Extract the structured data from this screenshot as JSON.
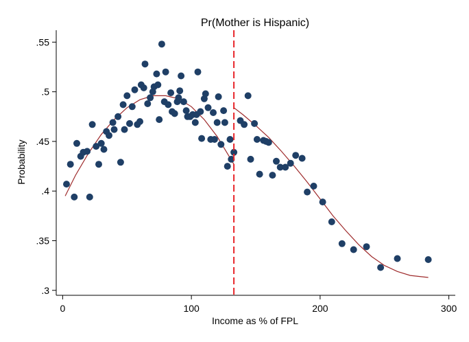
{
  "chart_data": {
    "type": "scatter",
    "title": "Pr(Mother is Hispanic)",
    "xlabel": "Income as % of FPL",
    "ylabel": "Probability",
    "xlim": [
      -5,
      305
    ],
    "ylim": [
      0.295,
      0.562
    ],
    "xticks": [
      0,
      100,
      200,
      300
    ],
    "xtick_labels": [
      "0",
      "100",
      "200",
      "300"
    ],
    "yticks": [
      0.3,
      0.35,
      0.4,
      0.45,
      0.5,
      0.55
    ],
    "ytick_labels": [
      ".3",
      ".35",
      ".4",
      ".45",
      ".5",
      ".55"
    ],
    "grid": false,
    "legend": "none",
    "colors": {
      "points": "#1f3f66",
      "fit": "#9e2a2b",
      "cutoff": "#e8262a",
      "axis": "#000000"
    },
    "cutoff_x": 133,
    "points": [
      {
        "x": 3,
        "y": 0.407
      },
      {
        "x": 6,
        "y": 0.427
      },
      {
        "x": 9,
        "y": 0.394
      },
      {
        "x": 11,
        "y": 0.448
      },
      {
        "x": 14,
        "y": 0.435
      },
      {
        "x": 16,
        "y": 0.439
      },
      {
        "x": 19,
        "y": 0.44
      },
      {
        "x": 21,
        "y": 0.394
      },
      {
        "x": 23,
        "y": 0.467
      },
      {
        "x": 26,
        "y": 0.445
      },
      {
        "x": 28,
        "y": 0.427
      },
      {
        "x": 30,
        "y": 0.448
      },
      {
        "x": 32,
        "y": 0.442
      },
      {
        "x": 34,
        "y": 0.46
      },
      {
        "x": 36,
        "y": 0.456
      },
      {
        "x": 39,
        "y": 0.469
      },
      {
        "x": 40,
        "y": 0.462
      },
      {
        "x": 43,
        "y": 0.475
      },
      {
        "x": 45,
        "y": 0.429
      },
      {
        "x": 47,
        "y": 0.487
      },
      {
        "x": 48,
        "y": 0.462
      },
      {
        "x": 50,
        "y": 0.496
      },
      {
        "x": 52,
        "y": 0.468
      },
      {
        "x": 54,
        "y": 0.485
      },
      {
        "x": 56,
        "y": 0.502
      },
      {
        "x": 58,
        "y": 0.467
      },
      {
        "x": 60,
        "y": 0.47
      },
      {
        "x": 61,
        "y": 0.507
      },
      {
        "x": 63,
        "y": 0.504
      },
      {
        "x": 64,
        "y": 0.528
      },
      {
        "x": 66,
        "y": 0.488
      },
      {
        "x": 68,
        "y": 0.494
      },
      {
        "x": 70,
        "y": 0.5
      },
      {
        "x": 71,
        "y": 0.505
      },
      {
        "x": 73,
        "y": 0.518
      },
      {
        "x": 74,
        "y": 0.507
      },
      {
        "x": 75,
        "y": 0.472
      },
      {
        "x": 77,
        "y": 0.548
      },
      {
        "x": 79,
        "y": 0.49
      },
      {
        "x": 80,
        "y": 0.52
      },
      {
        "x": 82,
        "y": 0.487
      },
      {
        "x": 84,
        "y": 0.499
      },
      {
        "x": 85,
        "y": 0.48
      },
      {
        "x": 87,
        "y": 0.478
      },
      {
        "x": 89,
        "y": 0.49
      },
      {
        "x": 90,
        "y": 0.494
      },
      {
        "x": 91,
        "y": 0.501
      },
      {
        "x": 92,
        "y": 0.516
      },
      {
        "x": 94,
        "y": 0.49
      },
      {
        "x": 96,
        "y": 0.481
      },
      {
        "x": 97,
        "y": 0.475
      },
      {
        "x": 99,
        "y": 0.475
      },
      {
        "x": 101,
        "y": 0.477
      },
      {
        "x": 103,
        "y": 0.469
      },
      {
        "x": 104,
        "y": 0.477
      },
      {
        "x": 105,
        "y": 0.52
      },
      {
        "x": 107,
        "y": 0.48
      },
      {
        "x": 108,
        "y": 0.453
      },
      {
        "x": 110,
        "y": 0.493
      },
      {
        "x": 111,
        "y": 0.498
      },
      {
        "x": 113,
        "y": 0.484
      },
      {
        "x": 115,
        "y": 0.452
      },
      {
        "x": 117,
        "y": 0.479
      },
      {
        "x": 118,
        "y": 0.452
      },
      {
        "x": 120,
        "y": 0.469
      },
      {
        "x": 121,
        "y": 0.495
      },
      {
        "x": 123,
        "y": 0.447
      },
      {
        "x": 125,
        "y": 0.481
      },
      {
        "x": 126,
        "y": 0.469
      },
      {
        "x": 128,
        "y": 0.425
      },
      {
        "x": 130,
        "y": 0.452
      },
      {
        "x": 131,
        "y": 0.432
      },
      {
        "x": 133,
        "y": 0.439
      },
      {
        "x": 138,
        "y": 0.471
      },
      {
        "x": 141,
        "y": 0.467
      },
      {
        "x": 144,
        "y": 0.496
      },
      {
        "x": 146,
        "y": 0.432
      },
      {
        "x": 149,
        "y": 0.468
      },
      {
        "x": 151,
        "y": 0.452
      },
      {
        "x": 153,
        "y": 0.417
      },
      {
        "x": 156,
        "y": 0.451
      },
      {
        "x": 158,
        "y": 0.45
      },
      {
        "x": 160,
        "y": 0.449
      },
      {
        "x": 163,
        "y": 0.416
      },
      {
        "x": 166,
        "y": 0.43
      },
      {
        "x": 169,
        "y": 0.424
      },
      {
        "x": 173,
        "y": 0.424
      },
      {
        "x": 177,
        "y": 0.428
      },
      {
        "x": 181,
        "y": 0.436
      },
      {
        "x": 186,
        "y": 0.433
      },
      {
        "x": 190,
        "y": 0.399
      },
      {
        "x": 195,
        "y": 0.405
      },
      {
        "x": 202,
        "y": 0.389
      },
      {
        "x": 209,
        "y": 0.369
      },
      {
        "x": 217,
        "y": 0.347
      },
      {
        "x": 226,
        "y": 0.341
      },
      {
        "x": 236,
        "y": 0.344
      },
      {
        "x": 247,
        "y": 0.323
      },
      {
        "x": 260,
        "y": 0.332
      },
      {
        "x": 284,
        "y": 0.331
      }
    ],
    "fit_left": {
      "x": [
        2,
        10,
        20,
        30,
        40,
        50,
        60,
        70,
        80,
        90,
        100,
        110,
        120,
        133
      ],
      "y": [
        0.395,
        0.416,
        0.438,
        0.457,
        0.472,
        0.484,
        0.492,
        0.496,
        0.496,
        0.493,
        0.485,
        0.472,
        0.455,
        0.427
      ]
    },
    "fit_right": {
      "x": [
        133,
        140,
        150,
        160,
        170,
        180,
        190,
        200,
        210,
        220,
        230,
        240,
        250,
        260,
        270,
        284
      ],
      "y": [
        0.484,
        0.477,
        0.466,
        0.454,
        0.44,
        0.425,
        0.409,
        0.392,
        0.375,
        0.36,
        0.346,
        0.334,
        0.325,
        0.319,
        0.315,
        0.313
      ]
    }
  }
}
